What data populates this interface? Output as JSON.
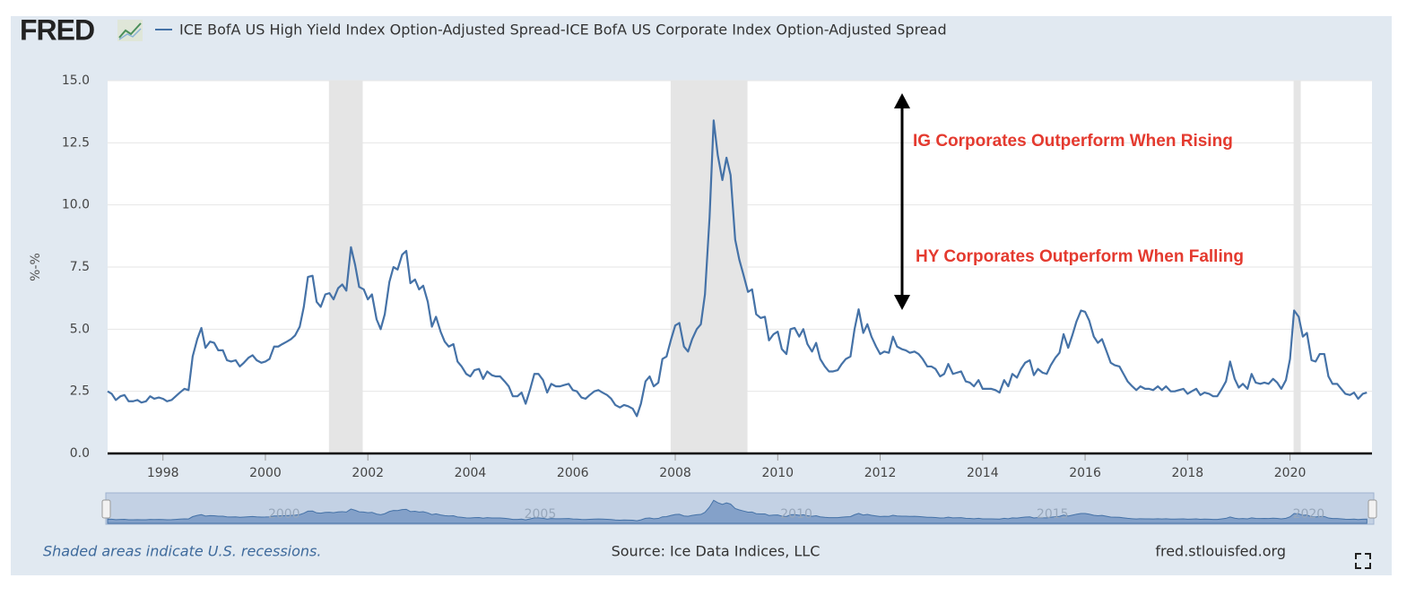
{
  "chart_data": {
    "type": "line",
    "logo": "FRED",
    "y_label": "%-%",
    "annotations": [
      "IG Corporates Outperform When Rising",
      "HY Corporates Outperform When Falling"
    ],
    "note": "Shaded areas indicate U.S. recessions.",
    "source": "Source: Ice Data Indices, LLC",
    "site": "fred.stlouisfed.org",
    "xlim": [
      1996.92,
      2021.6
    ],
    "ylim": [
      0,
      15
    ],
    "xticks": [
      1998,
      2000,
      2002,
      2004,
      2006,
      2008,
      2010,
      2012,
      2014,
      2016,
      2018,
      2020
    ],
    "yticks": [
      {
        "value": 0,
        "label": "0.0"
      },
      2.5,
      {
        "value": 5,
        "label": "5.0"
      },
      7.5,
      {
        "value": 10,
        "label": "10.0"
      },
      12.5,
      {
        "value": 15,
        "label": "15.0"
      }
    ],
    "navigator_ticks": [
      2000,
      2005,
      2010,
      2015,
      2020
    ],
    "grid": true,
    "recessions": [
      [
        2001.24,
        2001.9
      ],
      [
        2007.91,
        2009.41
      ],
      [
        2020.07,
        2020.21
      ]
    ],
    "x": [
      1996.92,
      1997,
      1997.08,
      1997.17,
      1997.25,
      1997.33,
      1997.42,
      1997.5,
      1997.58,
      1997.67,
      1997.75,
      1997.83,
      1997.92,
      1998,
      1998.08,
      1998.17,
      1998.25,
      1998.33,
      1998.42,
      1998.5,
      1998.58,
      1998.67,
      1998.75,
      1998.83,
      1998.92,
      1999,
      1999.08,
      1999.17,
      1999.25,
      1999.33,
      1999.42,
      1999.5,
      1999.58,
      1999.67,
      1999.75,
      1999.83,
      1999.92,
      2000,
      2000.08,
      2000.17,
      2000.25,
      2000.33,
      2000.42,
      2000.5,
      2000.58,
      2000.67,
      2000.75,
      2000.83,
      2000.92,
      2001,
      2001.08,
      2001.17,
      2001.25,
      2001.33,
      2001.42,
      2001.5,
      2001.58,
      2001.67,
      2001.75,
      2001.83,
      2001.92,
      2002,
      2002.08,
      2002.17,
      2002.25,
      2002.33,
      2002.42,
      2002.5,
      2002.58,
      2002.67,
      2002.75,
      2002.83,
      2002.92,
      2003,
      2003.08,
      2003.17,
      2003.25,
      2003.33,
      2003.42,
      2003.5,
      2003.58,
      2003.67,
      2003.75,
      2003.83,
      2003.92,
      2004,
      2004.08,
      2004.17,
      2004.25,
      2004.33,
      2004.42,
      2004.5,
      2004.58,
      2004.67,
      2004.75,
      2004.83,
      2004.92,
      2005,
      2005.08,
      2005.17,
      2005.25,
      2005.33,
      2005.42,
      2005.5,
      2005.58,
      2005.67,
      2005.75,
      2005.83,
      2005.92,
      2006,
      2006.08,
      2006.17,
      2006.25,
      2006.33,
      2006.42,
      2006.5,
      2006.58,
      2006.67,
      2006.75,
      2006.83,
      2006.92,
      2007,
      2007.08,
      2007.17,
      2007.25,
      2007.33,
      2007.42,
      2007.5,
      2007.58,
      2007.67,
      2007.75,
      2007.83,
      2007.92,
      2008,
      2008.08,
      2008.17,
      2008.25,
      2008.33,
      2008.42,
      2008.5,
      2008.58,
      2008.67,
      2008.75,
      2008.83,
      2008.92,
      2009,
      2009.08,
      2009.17,
      2009.25,
      2009.33,
      2009.42,
      2009.5,
      2009.58,
      2009.67,
      2009.75,
      2009.83,
      2009.92,
      2010,
      2010.08,
      2010.17,
      2010.25,
      2010.33,
      2010.42,
      2010.5,
      2010.58,
      2010.67,
      2010.75,
      2010.83,
      2010.92,
      2011,
      2011.08,
      2011.17,
      2011.25,
      2011.33,
      2011.42,
      2011.5,
      2011.58,
      2011.67,
      2011.75,
      2011.83,
      2011.92,
      2012,
      2012.08,
      2012.17,
      2012.25,
      2012.33,
      2012.42,
      2012.5,
      2012.58,
      2012.67,
      2012.75,
      2012.83,
      2012.92,
      2013,
      2013.08,
      2013.17,
      2013.25,
      2013.33,
      2013.42,
      2013.5,
      2013.58,
      2013.67,
      2013.75,
      2013.83,
      2013.92,
      2014,
      2014.08,
      2014.17,
      2014.25,
      2014.33,
      2014.42,
      2014.5,
      2014.58,
      2014.67,
      2014.75,
      2014.83,
      2014.92,
      2015,
      2015.08,
      2015.17,
      2015.25,
      2015.33,
      2015.42,
      2015.5,
      2015.58,
      2015.67,
      2015.75,
      2015.83,
      2015.92,
      2016,
      2016.08,
      2016.17,
      2016.25,
      2016.33,
      2016.42,
      2016.5,
      2016.58,
      2016.67,
      2016.75,
      2016.83,
      2016.92,
      2017,
      2017.08,
      2017.17,
      2017.25,
      2017.33,
      2017.42,
      2017.5,
      2017.58,
      2017.67,
      2017.75,
      2017.83,
      2017.92,
      2018,
      2018.08,
      2018.17,
      2018.25,
      2018.33,
      2018.42,
      2018.5,
      2018.58,
      2018.67,
      2018.75,
      2018.83,
      2018.92,
      2019,
      2019.08,
      2019.17,
      2019.25,
      2019.33,
      2019.42,
      2019.5,
      2019.58,
      2019.67,
      2019.75,
      2019.83,
      2019.92,
      2020,
      2020.08,
      2020.17,
      2020.25,
      2020.33,
      2020.42,
      2020.5,
      2020.58,
      2020.67,
      2020.75,
      2020.83,
      2020.92,
      2021,
      2021.08,
      2021.17,
      2021.25,
      2021.33,
      2021.42,
      2021.5
    ],
    "series": [
      {
        "name": "ICE BofA US High Yield Index Option-Adjusted Spread-ICE BofA US Corporate Index Option-Adjusted Spread",
        "color": "#4572a7",
        "values": [
          2.5,
          2.4,
          2.15,
          2.3,
          2.35,
          2.1,
          2.1,
          2.15,
          2.05,
          2.1,
          2.3,
          2.2,
          2.25,
          2.2,
          2.1,
          2.15,
          2.3,
          2.45,
          2.6,
          2.55,
          3.9,
          4.6,
          5.05,
          4.25,
          4.5,
          4.45,
          4.15,
          4.15,
          3.75,
          3.7,
          3.75,
          3.5,
          3.65,
          3.85,
          3.95,
          3.75,
          3.65,
          3.7,
          3.8,
          4.3,
          4.3,
          4.4,
          4.5,
          4.6,
          4.75,
          5.1,
          5.9,
          7.1,
          7.15,
          6.1,
          5.9,
          6.4,
          6.45,
          6.2,
          6.65,
          6.8,
          6.55,
          8.3,
          7.6,
          6.7,
          6.6,
          6.2,
          6.4,
          5.4,
          5.0,
          5.6,
          6.9,
          7.5,
          7.4,
          8.0,
          8.15,
          6.85,
          7.0,
          6.6,
          6.75,
          6.1,
          5.1,
          5.5,
          4.9,
          4.5,
          4.3,
          4.4,
          3.7,
          3.5,
          3.2,
          3.1,
          3.35,
          3.4,
          3.0,
          3.3,
          3.15,
          3.1,
          3.1,
          2.9,
          2.7,
          2.3,
          2.3,
          2.45,
          2.0,
          2.6,
          3.2,
          3.2,
          2.95,
          2.45,
          2.8,
          2.7,
          2.7,
          2.75,
          2.8,
          2.55,
          2.5,
          2.25,
          2.2,
          2.35,
          2.5,
          2.55,
          2.45,
          2.35,
          2.2,
          1.95,
          1.85,
          1.95,
          1.9,
          1.8,
          1.5,
          2.0,
          2.9,
          3.1,
          2.7,
          2.85,
          3.8,
          3.9,
          4.6,
          5.15,
          5.25,
          4.3,
          4.1,
          4.6,
          5.0,
          5.2,
          6.4,
          9.5,
          13.4,
          12.0,
          11.0,
          11.9,
          11.2,
          8.6,
          7.8,
          7.2,
          6.5,
          6.6,
          5.6,
          5.45,
          5.5,
          4.55,
          4.8,
          4.9,
          4.2,
          4.0,
          5.0,
          5.05,
          4.7,
          5.0,
          4.4,
          4.1,
          4.45,
          3.8,
          3.5,
          3.3,
          3.3,
          3.35,
          3.6,
          3.8,
          3.9,
          5.0,
          5.8,
          4.85,
          5.2,
          4.7,
          4.3,
          4.0,
          4.1,
          4.05,
          4.7,
          4.3,
          4.2,
          4.15,
          4.05,
          4.1,
          4.0,
          3.8,
          3.5,
          3.5,
          3.4,
          3.1,
          3.2,
          3.6,
          3.2,
          3.25,
          3.3,
          2.9,
          2.85,
          2.7,
          2.95,
          2.6,
          2.6,
          2.6,
          2.55,
          2.45,
          2.95,
          2.7,
          3.2,
          3.05,
          3.4,
          3.65,
          3.75,
          3.15,
          3.4,
          3.25,
          3.2,
          3.55,
          3.85,
          4.05,
          4.8,
          4.25,
          4.75,
          5.3,
          5.75,
          5.7,
          5.35,
          4.7,
          4.45,
          4.6,
          4.1,
          3.65,
          3.55,
          3.5,
          3.2,
          2.9,
          2.7,
          2.55,
          2.7,
          2.6,
          2.6,
          2.55,
          2.7,
          2.55,
          2.7,
          2.5,
          2.5,
          2.55,
          2.6,
          2.4,
          2.5,
          2.6,
          2.35,
          2.45,
          2.4,
          2.3,
          2.3,
          2.6,
          2.9,
          3.7,
          3.0,
          2.65,
          2.8,
          2.6,
          3.2,
          2.85,
          2.8,
          2.85,
          2.8,
          3.0,
          2.85,
          2.6,
          2.95,
          3.8,
          5.75,
          5.5,
          4.7,
          4.85,
          3.75,
          3.7,
          4.0,
          4.0,
          3.1,
          2.8,
          2.8,
          2.6,
          2.4,
          2.35,
          2.45,
          2.2,
          2.4,
          2.45
        ]
      }
    ]
  }
}
